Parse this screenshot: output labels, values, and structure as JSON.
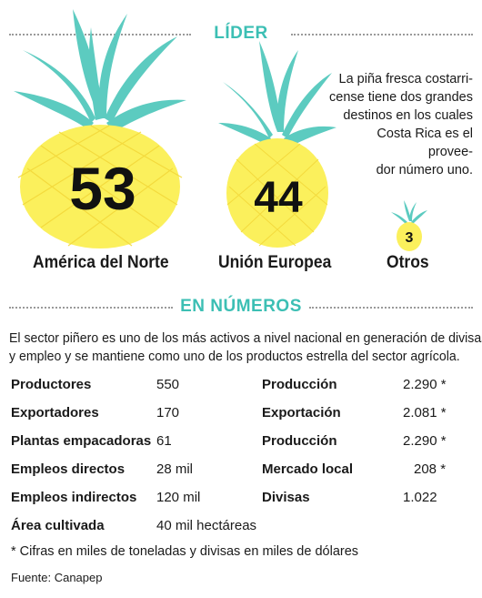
{
  "sections": {
    "leader_title": "LÍDER",
    "numbers_title": "EN NÚMEROS"
  },
  "colors": {
    "accent": "#3cbfb4",
    "pineapple_body": "#fbf05c",
    "leaves": "#5ccbc0"
  },
  "destinations": [
    {
      "label": "América del Norte",
      "value": "53"
    },
    {
      "label": "Unión Europea",
      "value": "44"
    },
    {
      "label": "Otros",
      "value": "3"
    }
  ],
  "intro": [
    "La piña fresca costarri-",
    "cense tiene dos grandes",
    "destinos en los cuales",
    "Costa Rica es el provee-",
    "dor número uno."
  ],
  "paragraph": [
    "El sector piñero es uno de los más activos a nivel nacional en generación de divisas",
    "y empleo y se mantiene como uno de los productos estrella del sector agrícola."
  ],
  "stats_left": [
    {
      "label": "Productores",
      "value": "550"
    },
    {
      "label": "Exportadores",
      "value": "170"
    },
    {
      "label": "Plantas empacadoras",
      "value": "61"
    },
    {
      "label": "Empleos directos",
      "value": "28 mil"
    },
    {
      "label": "Empleos indirectos",
      "value": "120 mil"
    },
    {
      "label": "Área cultivada",
      "value": "40 mil hectáreas"
    }
  ],
  "stats_right": [
    {
      "label": "Producción",
      "value": "2.290 *"
    },
    {
      "label": "Exportación",
      "value": "2.081 *"
    },
    {
      "label": "Producción",
      "value": "2.290 *"
    },
    {
      "label": "Mercado local",
      "value": "208 *"
    },
    {
      "label": "Divisas",
      "value": "1.022"
    }
  ],
  "footnote": "* Cifras en miles de toneladas y divisas en miles de dólares",
  "source": "Fuente: Canapep"
}
